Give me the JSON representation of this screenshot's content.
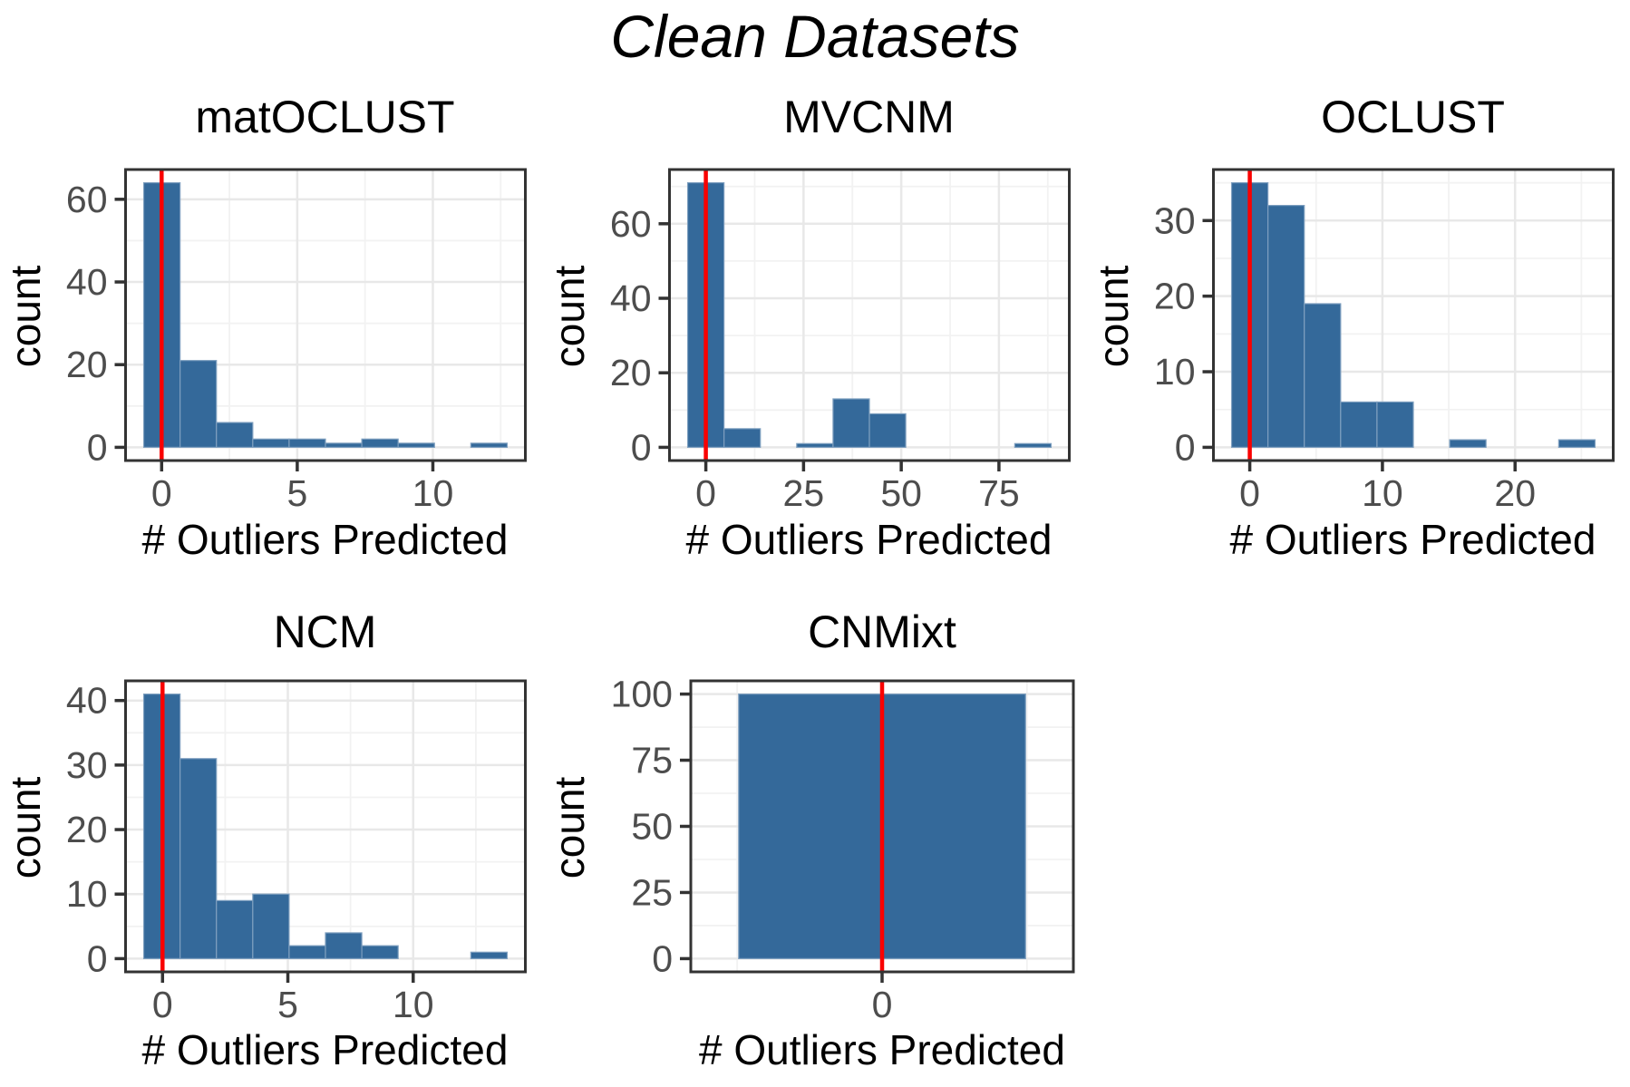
{
  "figure": {
    "title": "Clean Datasets"
  },
  "colors": {
    "bar_fill": "#34699a",
    "bar_stroke": "#7e9fbf",
    "vline": "#fa0000",
    "grid_major": "#e8e8e8",
    "grid_minor": "#f2f2f2",
    "panel_border": "#333333",
    "tick_mark": "#333333",
    "tick_label": "#4d4d4d",
    "text": "#000000",
    "background": "#ffffff"
  },
  "chart_data": [
    {
      "type": "bar",
      "subtype": "histogram",
      "title": "matOCLUST",
      "xlabel": "# Outliers Predicted",
      "ylabel": "count",
      "bin_start": -0.66,
      "bin_width": 1.34,
      "counts": [
        64,
        21,
        6,
        2,
        2,
        1,
        2,
        1,
        0,
        1
      ],
      "xlim": [
        -1.33,
        13.41
      ],
      "ylim": [
        -3.2,
        67.2
      ],
      "x_ticks": [
        0,
        5,
        10
      ],
      "x_minor": [
        2.5,
        7.5,
        12.5
      ],
      "y_ticks": [
        0,
        20,
        40,
        60
      ],
      "y_minor": [
        10,
        30,
        50
      ],
      "vline_x": 0,
      "grid": true,
      "legend": "none"
    },
    {
      "type": "bar",
      "subtype": "histogram",
      "title": "MVCNM",
      "xlabel": "# Outliers Predicted",
      "ylabel": "count",
      "bin_start": -4.65,
      "bin_width": 9.3,
      "counts": [
        71,
        5,
        0,
        1,
        13,
        9,
        0,
        0,
        0,
        1
      ],
      "xlim": [
        -9.3,
        93.0
      ],
      "ylim": [
        -3.55,
        74.55
      ],
      "x_ticks": [
        0,
        25,
        50,
        75
      ],
      "x_minor": [
        12.5,
        37.5,
        62.5,
        87.5
      ],
      "y_ticks": [
        0,
        20,
        40,
        60
      ],
      "y_minor": [
        10,
        30,
        50,
        70
      ],
      "vline_x": 0,
      "grid": true,
      "legend": "none"
    },
    {
      "type": "bar",
      "subtype": "histogram",
      "title": "OCLUST",
      "xlabel": "# Outliers Predicted",
      "ylabel": "count",
      "bin_start": -1.37,
      "bin_width": 2.74,
      "counts": [
        35,
        32,
        19,
        6,
        6,
        0,
        1,
        0,
        0,
        1
      ],
      "xlim": [
        -2.74,
        27.4
      ],
      "ylim": [
        -1.75,
        36.75
      ],
      "x_ticks": [
        0,
        10,
        20
      ],
      "x_minor": [
        5,
        15,
        25
      ],
      "y_ticks": [
        0,
        10,
        20,
        30
      ],
      "y_minor": [
        5,
        15,
        25,
        35
      ],
      "vline_x": 0,
      "grid": true,
      "legend": "none"
    },
    {
      "type": "bar",
      "subtype": "histogram",
      "title": "NCM",
      "xlabel": "# Outliers Predicted",
      "ylabel": "count",
      "bin_start": -0.75,
      "bin_width": 1.45,
      "counts": [
        41,
        31,
        9,
        10,
        2,
        4,
        2,
        0,
        0,
        1
      ],
      "xlim": [
        -1.475,
        14.475
      ],
      "ylim": [
        -2.05,
        43.05
      ],
      "x_ticks": [
        0,
        5,
        10
      ],
      "x_minor": [
        2.5,
        7.5,
        12.5
      ],
      "y_ticks": [
        0,
        10,
        20,
        30,
        40
      ],
      "y_minor": [
        5,
        15,
        25,
        35
      ],
      "vline_x": 0,
      "grid": true,
      "legend": "none"
    },
    {
      "type": "bar",
      "subtype": "histogram",
      "title": "CNMixt",
      "xlabel": "# Outliers Predicted",
      "ylabel": "count",
      "bin_start": -0.495,
      "bin_width": 0.99,
      "counts": [
        100
      ],
      "xlim": [
        -0.66,
        0.66
      ],
      "ylim": [
        -5,
        105
      ],
      "x_ticks": [
        0
      ],
      "x_minor": [
        -0.5,
        0.5
      ],
      "y_ticks": [
        0,
        25,
        50,
        75,
        100
      ],
      "y_minor": [
        12.5,
        37.5,
        62.5,
        87.5
      ],
      "vline_x": 0,
      "grid": true,
      "legend": "none"
    }
  ]
}
